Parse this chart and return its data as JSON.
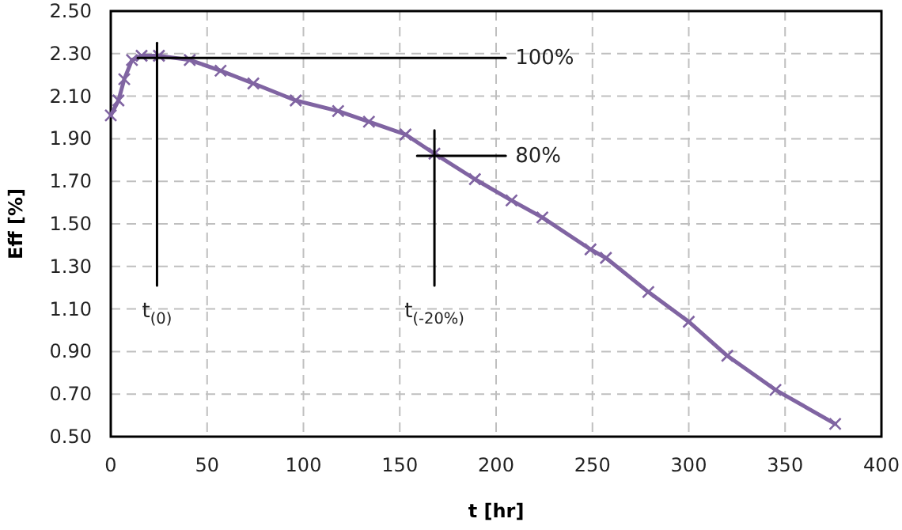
{
  "chart_data": {
    "type": "line",
    "xlabel": "t [hr]",
    "ylabel": "Eff [%]",
    "xlim": [
      0,
      400
    ],
    "xticks": [
      0,
      50,
      100,
      150,
      200,
      250,
      300,
      350,
      400
    ],
    "ylim": [
      0.5,
      2.5
    ],
    "yticks": [
      {
        "value": 0.5,
        "label": "0.50"
      },
      {
        "value": 0.7,
        "label": "0.70"
      },
      {
        "value": 0.9,
        "label": "0.90"
      },
      {
        "value": 1.1,
        "label": "1.10"
      },
      {
        "value": 1.3,
        "label": "1.30"
      },
      {
        "value": 1.5,
        "label": "1.50"
      },
      {
        "value": 1.7,
        "label": "1.70"
      },
      {
        "value": 1.9,
        "label": "1.90"
      },
      {
        "value": 2.1,
        "label": "2.10"
      },
      {
        "value": 2.3,
        "label": "2.30"
      },
      {
        "value": 2.5,
        "label": "2.50"
      }
    ],
    "grid": true,
    "marker": "cross",
    "line_style": "solid",
    "series": [
      {
        "color": "#8064a2",
        "x": [
          0,
          4,
          7,
          11,
          16,
          25,
          41,
          57,
          74,
          96,
          118,
          134,
          153,
          168,
          189,
          208,
          224,
          249,
          257,
          279,
          300,
          320,
          345,
          376
        ],
        "values": [
          2.01,
          2.08,
          2.18,
          2.27,
          2.29,
          2.29,
          2.27,
          2.22,
          2.16,
          2.08,
          2.03,
          1.98,
          1.92,
          1.83,
          1.71,
          1.61,
          1.53,
          1.38,
          1.34,
          1.18,
          1.04,
          0.88,
          0.72,
          0.56
        ]
      },
      {
        "color": "#000000",
        "marker": "none",
        "x": [
          14,
          205
        ],
        "values": [
          2.28,
          2.28
        ]
      },
      {
        "color": "#000000",
        "marker": "none",
        "x": [
          24,
          24
        ],
        "values": [
          2.35,
          1.21
        ]
      },
      {
        "color": "#000000",
        "marker": "none",
        "x": [
          159,
          205
        ],
        "values": [
          1.82,
          1.82
        ]
      },
      {
        "color": "#000000",
        "marker": "none",
        "x": [
          168,
          168
        ],
        "values": [
          1.94,
          1.21
        ]
      }
    ],
    "annotations": [
      {
        "text": "100%",
        "x": 205,
        "y": 2.28
      },
      {
        "text": "80%",
        "x": 205,
        "y": 1.82
      },
      {
        "text": "t$_{(0)}$",
        "x": 24,
        "y": 1.21
      },
      {
        "text": "t$_{(-20%)}$",
        "x": 168,
        "y": 1.21
      }
    ]
  }
}
